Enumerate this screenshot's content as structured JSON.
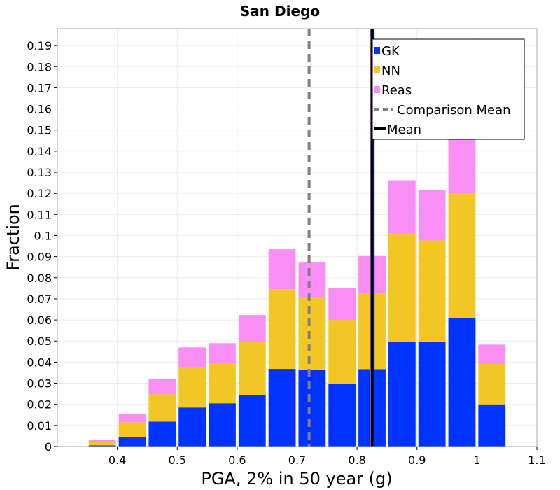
{
  "chart_data": {
    "type": "bar",
    "stacked": true,
    "title": "San Diego",
    "xlabel": "PGA, 2% in 50 year (g)",
    "ylabel": "Fraction",
    "xlim": [
      0.3,
      1.1
    ],
    "ylim": [
      0,
      0.198
    ],
    "xticks": [
      {
        "value": 0.4,
        "label": "0.4"
      },
      {
        "value": 0.5,
        "label": "0.5"
      },
      {
        "value": 0.6,
        "label": "0.6"
      },
      {
        "value": 0.7,
        "label": "0.7"
      },
      {
        "value": 0.8,
        "label": "0.8"
      },
      {
        "value": 0.9,
        "label": "0.9"
      },
      {
        "value": 1.0,
        "label": "1"
      },
      {
        "value": 1.1,
        "label": "1.1"
      }
    ],
    "yticks": [
      {
        "value": 0,
        "label": "0"
      },
      {
        "value": 0.01,
        "label": "0.01"
      },
      {
        "value": 0.02,
        "label": "0.02"
      },
      {
        "value": 0.03,
        "label": "0.03"
      },
      {
        "value": 0.04,
        "label": "0.04"
      },
      {
        "value": 0.05,
        "label": "0.05"
      },
      {
        "value": 0.06,
        "label": "0.06"
      },
      {
        "value": 0.07,
        "label": "0.07"
      },
      {
        "value": 0.08,
        "label": "0.08"
      },
      {
        "value": 0.09,
        "label": "0.09"
      },
      {
        "value": 0.1,
        "label": "0.1"
      },
      {
        "value": 0.11,
        "label": "0.11"
      },
      {
        "value": 0.12,
        "label": "0.12"
      },
      {
        "value": 0.13,
        "label": "0.13"
      },
      {
        "value": 0.14,
        "label": "0.14"
      },
      {
        "value": 0.15,
        "label": "0.15"
      },
      {
        "value": 0.16,
        "label": "0.16"
      },
      {
        "value": 0.17,
        "label": "0.17"
      },
      {
        "value": 0.18,
        "label": "0.18"
      },
      {
        "value": 0.19,
        "label": "0.19"
      }
    ],
    "bin_width": 0.05,
    "bin_centers": [
      0.375,
      0.425,
      0.475,
      0.525,
      0.575,
      0.625,
      0.675,
      0.725,
      0.775,
      0.825,
      0.875,
      0.925,
      0.975,
      1.025
    ],
    "series": [
      {
        "name": "GK",
        "color": "#0033ff",
        "values": [
          0.0005,
          0.0045,
          0.0118,
          0.0185,
          0.0205,
          0.0243,
          0.0368,
          0.0365,
          0.0298,
          0.0367,
          0.0498,
          0.0495,
          0.0607,
          0.02
        ]
      },
      {
        "name": "NN",
        "color": "#f2c725",
        "values": [
          0.0015,
          0.007,
          0.013,
          0.019,
          0.0192,
          0.0252,
          0.0377,
          0.034,
          0.0302,
          0.0358,
          0.0512,
          0.0482,
          0.0593,
          0.0193
        ]
      },
      {
        "name": "Reas",
        "color": "#f98ff4",
        "values": [
          0.0012,
          0.0038,
          0.0072,
          0.0095,
          0.0093,
          0.0128,
          0.019,
          0.0167,
          0.0153,
          0.0178,
          0.0252,
          0.024,
          0.03,
          0.009
        ]
      }
    ],
    "top_bin_highlight_color": "#fcd6fa",
    "reference_lines": [
      {
        "name": "Comparison Mean",
        "x": 0.72,
        "style": "dashed",
        "color": "#808080"
      },
      {
        "name": "Mean",
        "x": 0.825,
        "style": "solid",
        "color": "#000000"
      }
    ],
    "overlay_mean_lines": [
      {
        "series": "Reas",
        "x": 0.823,
        "color": "#f98ff4"
      },
      {
        "series": "NN",
        "x": 0.8245,
        "color": "#f2c725"
      },
      {
        "series": "GK",
        "x": 0.8275,
        "color": "#0033ff"
      }
    ],
    "legend": {
      "position": "top-right",
      "entries": [
        {
          "label": "GK",
          "kind": "box",
          "color": "#0033ff"
        },
        {
          "label": "NN",
          "kind": "box",
          "color": "#f2c725"
        },
        {
          "label": "Reas",
          "kind": "box",
          "color": "#f98ff4"
        },
        {
          "label": "Comparison Mean",
          "kind": "dash",
          "color": "#808080"
        },
        {
          "label": "Mean",
          "kind": "line",
          "color": "#000000"
        }
      ]
    },
    "grid": true
  }
}
